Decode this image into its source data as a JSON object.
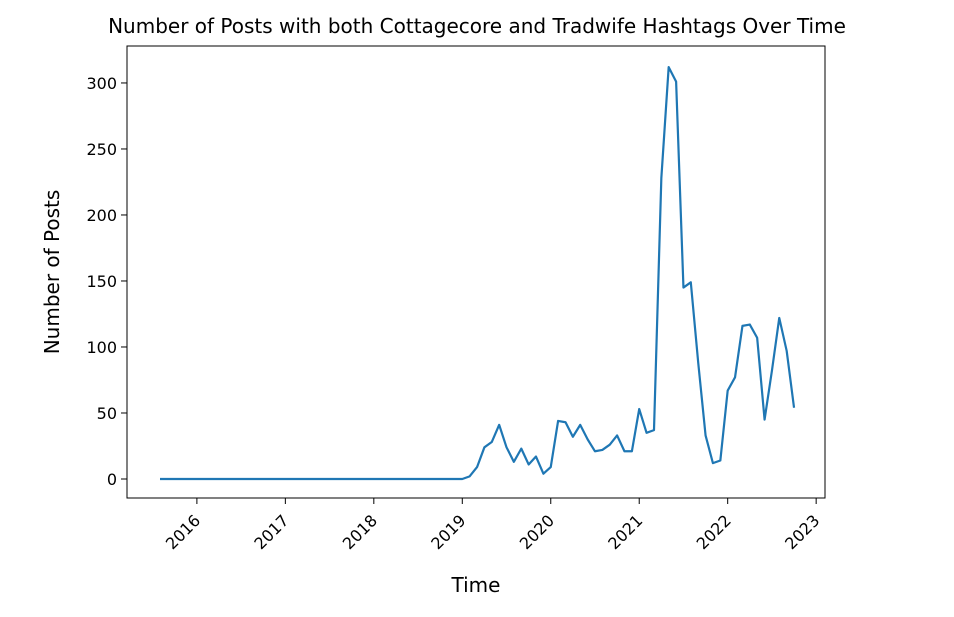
{
  "chart_data": {
    "type": "line",
    "title": "Number of Posts with both Cottagecore and Tradwife Hashtags Over Time",
    "x_label": "Time",
    "y_label": "Number of Posts",
    "x": [
      2015.583,
      2015.667,
      2015.75,
      2015.833,
      2015.917,
      2016,
      2016.083,
      2016.167,
      2016.25,
      2016.333,
      2016.417,
      2016.5,
      2016.583,
      2016.667,
      2016.75,
      2016.833,
      2016.917,
      2017,
      2017.083,
      2017.167,
      2017.25,
      2017.333,
      2017.417,
      2017.5,
      2017.583,
      2017.667,
      2017.75,
      2017.833,
      2017.917,
      2018,
      2018.083,
      2018.167,
      2018.25,
      2018.333,
      2018.417,
      2018.5,
      2018.583,
      2018.667,
      2018.75,
      2018.833,
      2018.917,
      2019,
      2019.083,
      2019.167,
      2019.25,
      2019.333,
      2019.417,
      2019.5,
      2019.583,
      2019.667,
      2019.75,
      2019.833,
      2019.917,
      2020,
      2020.083,
      2020.167,
      2020.25,
      2020.333,
      2020.417,
      2020.5,
      2020.583,
      2020.667,
      2020.75,
      2020.833,
      2020.917,
      2021,
      2021.083,
      2021.167,
      2021.25,
      2021.333,
      2021.417,
      2021.5,
      2021.583,
      2021.667,
      2021.75,
      2021.833,
      2021.917,
      2022,
      2022.083,
      2022.167,
      2022.25,
      2022.333,
      2022.417,
      2022.5,
      2022.583,
      2022.667,
      2022.75
    ],
    "series": [
      {
        "color": "#1f77b4",
        "values": [
          0,
          0,
          0,
          0,
          0,
          0,
          0,
          0,
          0,
          0,
          0,
          0,
          0,
          0,
          0,
          0,
          0,
          0,
          0,
          0,
          0,
          0,
          0,
          0,
          0,
          0,
          0,
          0,
          0,
          0,
          0,
          0,
          0,
          0,
          0,
          0,
          0,
          0,
          0,
          0,
          0,
          0,
          2,
          9,
          24,
          28,
          41,
          24,
          13,
          23,
          11,
          17,
          4,
          9,
          44,
          43,
          32,
          41,
          30,
          21,
          22,
          26,
          33,
          21,
          21,
          53,
          35,
          37,
          228,
          312,
          301,
          145,
          149,
          88,
          33,
          12,
          14,
          67,
          77,
          116,
          117,
          107,
          45,
          82,
          122,
          97,
          54
        ]
      }
    ],
    "xlim": [
      2015.21,
      2023.1
    ],
    "xticks": [
      2016,
      2017,
      2018,
      2019,
      2020,
      2021,
      2022,
      2023
    ],
    "ylim": [
      -14.4,
      328
    ],
    "yticks": [
      0,
      50,
      100,
      150,
      200,
      250,
      300
    ]
  }
}
